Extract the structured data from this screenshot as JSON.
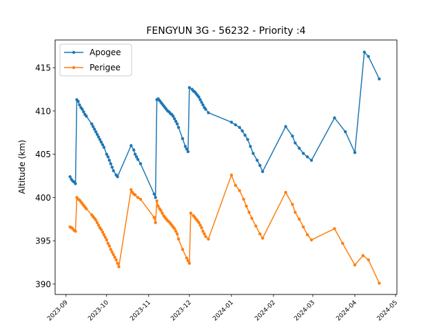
{
  "chart_data": {
    "type": "line",
    "title": "FENGYUN 3G - 56232 - Priority :4",
    "xlabel": "",
    "ylabel": "Altitude (km)",
    "x_scale": "date",
    "xlim": [
      "2023-08-24",
      "2024-05-02"
    ],
    "ylim": [
      388.8,
      418.2
    ],
    "x_ticks": [
      "2023-09",
      "2023-10",
      "2023-11",
      "2023-12",
      "2024-01",
      "2024-02",
      "2024-03",
      "2024-04",
      "2024-05"
    ],
    "y_ticks": [
      390,
      395,
      400,
      405,
      410,
      415
    ],
    "grid": false,
    "legend_position": "upper-left",
    "series": [
      {
        "name": "Apogee",
        "color": "#1f77b4",
        "marker": "dot",
        "points": [
          [
            "2023-09-04",
            402.4
          ],
          [
            "2023-09-05",
            402.1
          ],
          [
            "2023-09-06",
            401.9
          ],
          [
            "2023-09-07",
            401.8
          ],
          [
            "2023-09-08",
            401.6
          ],
          [
            "2023-09-09",
            411.3
          ],
          [
            "2023-09-10",
            411.1
          ],
          [
            "2023-09-11",
            410.7
          ],
          [
            "2023-09-12",
            410.4
          ],
          [
            "2023-09-13",
            410.2
          ],
          [
            "2023-09-14",
            409.9
          ],
          [
            "2023-09-15",
            409.6
          ],
          [
            "2023-09-16",
            409.4
          ],
          [
            "2023-09-20",
            408.5
          ],
          [
            "2023-09-21",
            408.2
          ],
          [
            "2023-09-22",
            407.9
          ],
          [
            "2023-09-23",
            407.6
          ],
          [
            "2023-09-24",
            407.3
          ],
          [
            "2023-09-25",
            407.0
          ],
          [
            "2023-09-26",
            406.7
          ],
          [
            "2023-09-27",
            406.4
          ],
          [
            "2023-09-28",
            406.1
          ],
          [
            "2023-09-29",
            405.8
          ],
          [
            "2023-10-01",
            405.0
          ],
          [
            "2023-10-02",
            404.7
          ],
          [
            "2023-10-03",
            404.3
          ],
          [
            "2023-10-04",
            403.9
          ],
          [
            "2023-10-05",
            403.5
          ],
          [
            "2023-10-06",
            403.1
          ],
          [
            "2023-10-08",
            402.6
          ],
          [
            "2023-10-09",
            402.4
          ],
          [
            "2023-10-19",
            406.0
          ],
          [
            "2023-10-21",
            405.5
          ],
          [
            "2023-10-22",
            405.0
          ],
          [
            "2023-10-23",
            404.7
          ],
          [
            "2023-10-24",
            404.4
          ],
          [
            "2023-10-26",
            403.9
          ],
          [
            "2023-11-05",
            400.4
          ],
          [
            "2023-11-06",
            400.0
          ],
          [
            "2023-11-07",
            411.3
          ],
          [
            "2023-11-08",
            411.4
          ],
          [
            "2023-11-09",
            411.2
          ],
          [
            "2023-11-10",
            411.0
          ],
          [
            "2023-11-11",
            410.8
          ],
          [
            "2023-11-12",
            410.6
          ],
          [
            "2023-11-13",
            410.4
          ],
          [
            "2023-11-14",
            410.2
          ],
          [
            "2023-11-15",
            410.0
          ],
          [
            "2023-11-16",
            409.9
          ],
          [
            "2023-11-17",
            409.7
          ],
          [
            "2023-11-18",
            409.6
          ],
          [
            "2023-11-19",
            409.4
          ],
          [
            "2023-11-20",
            409.1
          ],
          [
            "2023-11-21",
            408.8
          ],
          [
            "2023-11-22",
            408.5
          ],
          [
            "2023-11-23",
            408.1
          ],
          [
            "2023-11-26",
            406.8
          ],
          [
            "2023-11-28",
            405.9
          ],
          [
            "2023-11-29",
            405.6
          ],
          [
            "2023-11-30",
            405.3
          ],
          [
            "2023-12-01",
            412.7
          ],
          [
            "2023-12-03",
            412.5
          ],
          [
            "2023-12-04",
            412.3
          ],
          [
            "2023-12-05",
            412.2
          ],
          [
            "2023-12-06",
            412.0
          ],
          [
            "2023-12-07",
            411.8
          ],
          [
            "2023-12-08",
            411.6
          ],
          [
            "2023-12-09",
            411.3
          ],
          [
            "2023-12-10",
            411.0
          ],
          [
            "2023-12-11",
            410.7
          ],
          [
            "2023-12-12",
            410.4
          ],
          [
            "2023-12-13",
            410.2
          ],
          [
            "2023-12-15",
            409.8
          ],
          [
            "2024-01-01",
            408.7
          ],
          [
            "2024-01-04",
            408.4
          ],
          [
            "2024-01-07",
            408.1
          ],
          [
            "2024-01-09",
            407.7
          ],
          [
            "2024-01-11",
            407.2
          ],
          [
            "2024-01-13",
            406.7
          ],
          [
            "2024-01-15",
            405.9
          ],
          [
            "2024-01-17",
            405.1
          ],
          [
            "2024-01-20",
            404.3
          ],
          [
            "2024-01-22",
            403.7
          ],
          [
            "2024-01-24",
            403.0
          ],
          [
            "2024-02-10",
            408.2
          ],
          [
            "2024-02-15",
            407.1
          ],
          [
            "2024-02-17",
            406.3
          ],
          [
            "2024-02-20",
            405.7
          ],
          [
            "2024-02-23",
            405.1
          ],
          [
            "2024-02-26",
            404.7
          ],
          [
            "2024-02-29",
            404.3
          ],
          [
            "2024-03-17",
            409.2
          ],
          [
            "2024-03-25",
            407.6
          ],
          [
            "2024-04-01",
            405.2
          ],
          [
            "2024-04-08",
            416.8
          ],
          [
            "2024-04-11",
            416.3
          ],
          [
            "2024-04-19",
            413.7
          ]
        ]
      },
      {
        "name": "Perigee",
        "color": "#ff7f0e",
        "marker": "dot",
        "points": [
          [
            "2023-09-04",
            396.6
          ],
          [
            "2023-09-05",
            396.5
          ],
          [
            "2023-09-06",
            396.4
          ],
          [
            "2023-09-07",
            396.2
          ],
          [
            "2023-09-08",
            396.1
          ],
          [
            "2023-09-09",
            400.0
          ],
          [
            "2023-09-10",
            399.8
          ],
          [
            "2023-09-11",
            399.7
          ],
          [
            "2023-09-12",
            399.5
          ],
          [
            "2023-09-13",
            399.3
          ],
          [
            "2023-09-14",
            399.1
          ],
          [
            "2023-09-15",
            398.9
          ],
          [
            "2023-09-16",
            398.7
          ],
          [
            "2023-09-20",
            398.0
          ],
          [
            "2023-09-21",
            397.8
          ],
          [
            "2023-09-22",
            397.6
          ],
          [
            "2023-09-23",
            397.4
          ],
          [
            "2023-09-24",
            397.1
          ],
          [
            "2023-09-25",
            396.8
          ],
          [
            "2023-09-26",
            396.5
          ],
          [
            "2023-09-27",
            396.3
          ],
          [
            "2023-09-28",
            396.0
          ],
          [
            "2023-09-29",
            395.7
          ],
          [
            "2023-09-30",
            395.4
          ],
          [
            "2023-10-01",
            395.1
          ],
          [
            "2023-10-02",
            394.7
          ],
          [
            "2023-10-03",
            394.4
          ],
          [
            "2023-10-04",
            394.0
          ],
          [
            "2023-10-05",
            393.7
          ],
          [
            "2023-10-06",
            393.4
          ],
          [
            "2023-10-07",
            393.1
          ],
          [
            "2023-10-08",
            392.8
          ],
          [
            "2023-10-09",
            392.4
          ],
          [
            "2023-10-10",
            392.0
          ],
          [
            "2023-10-19",
            400.9
          ],
          [
            "2023-10-20",
            400.6
          ],
          [
            "2023-10-21",
            400.4
          ],
          [
            "2023-10-22",
            400.3
          ],
          [
            "2023-10-24",
            400.0
          ],
          [
            "2023-10-26",
            399.8
          ],
          [
            "2023-11-05",
            397.7
          ],
          [
            "2023-11-06",
            397.1
          ],
          [
            "2023-11-07",
            399.6
          ],
          [
            "2023-11-08",
            399.0
          ],
          [
            "2023-11-09",
            398.7
          ],
          [
            "2023-11-10",
            398.5
          ],
          [
            "2023-11-11",
            398.2
          ],
          [
            "2023-11-12",
            397.9
          ],
          [
            "2023-11-13",
            397.7
          ],
          [
            "2023-11-14",
            397.5
          ],
          [
            "2023-11-15",
            397.3
          ],
          [
            "2023-11-16",
            397.2
          ],
          [
            "2023-11-17",
            397.0
          ],
          [
            "2023-11-18",
            396.8
          ],
          [
            "2023-11-19",
            396.6
          ],
          [
            "2023-11-20",
            396.4
          ],
          [
            "2023-11-21",
            396.1
          ],
          [
            "2023-11-22",
            395.8
          ],
          [
            "2023-11-23",
            395.2
          ],
          [
            "2023-11-26",
            394.0
          ],
          [
            "2023-11-29",
            393.0
          ],
          [
            "2023-11-30",
            392.7
          ],
          [
            "2023-12-01",
            392.4
          ],
          [
            "2023-12-02",
            398.2
          ],
          [
            "2023-12-04",
            397.9
          ],
          [
            "2023-12-05",
            397.7
          ],
          [
            "2023-12-06",
            397.5
          ],
          [
            "2023-12-07",
            397.3
          ],
          [
            "2023-12-08",
            397.1
          ],
          [
            "2023-12-09",
            396.8
          ],
          [
            "2023-12-10",
            396.5
          ],
          [
            "2023-12-11",
            396.1
          ],
          [
            "2023-12-12",
            395.8
          ],
          [
            "2023-12-13",
            395.5
          ],
          [
            "2023-12-15",
            395.2
          ],
          [
            "2024-01-01",
            402.6
          ],
          [
            "2024-01-04",
            401.4
          ],
          [
            "2024-01-07",
            400.8
          ],
          [
            "2024-01-10",
            399.8
          ],
          [
            "2024-01-12",
            399.0
          ],
          [
            "2024-01-14",
            398.3
          ],
          [
            "2024-01-16",
            397.6
          ],
          [
            "2024-01-19",
            396.7
          ],
          [
            "2024-01-22",
            395.8
          ],
          [
            "2024-01-24",
            395.3
          ],
          [
            "2024-02-10",
            400.6
          ],
          [
            "2024-02-15",
            399.2
          ],
          [
            "2024-02-17",
            398.3
          ],
          [
            "2024-02-20",
            397.5
          ],
          [
            "2024-02-23",
            396.6
          ],
          [
            "2024-02-26",
            395.7
          ],
          [
            "2024-02-29",
            395.1
          ],
          [
            "2024-03-17",
            396.4
          ],
          [
            "2024-03-23",
            394.7
          ],
          [
            "2024-04-01",
            392.2
          ],
          [
            "2024-04-07",
            393.3
          ],
          [
            "2024-04-11",
            392.8
          ],
          [
            "2024-04-19",
            390.1
          ]
        ]
      }
    ]
  }
}
